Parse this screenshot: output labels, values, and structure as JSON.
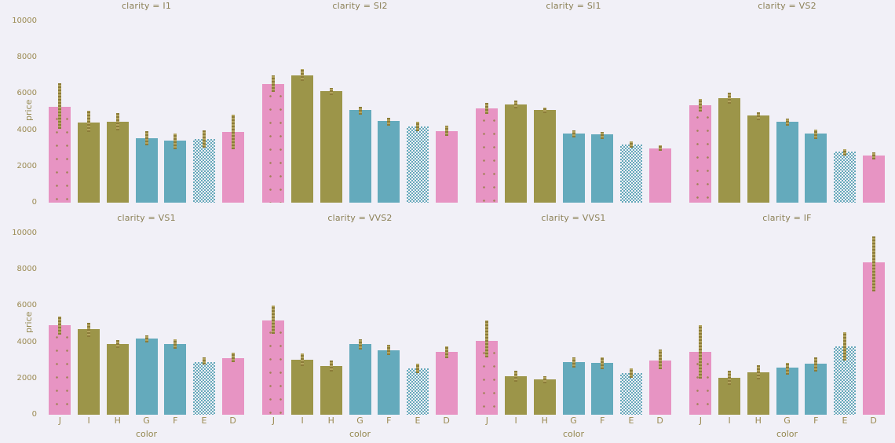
{
  "figure": {
    "background": "#f1f0f7",
    "ylabel": "price",
    "xlabel": "color",
    "yticks": [
      "10000",
      "8000",
      "6000",
      "4000",
      "2000",
      "0"
    ],
    "ytick_values": [
      10000,
      8000,
      6000,
      4000,
      2000,
      0
    ],
    "text_color": "#9b8a52",
    "title_color": "#8c8157",
    "bar_styles": [
      "pink-dotted",
      "olive",
      "olive",
      "teal",
      "teal",
      "blue-dotted",
      "pink"
    ],
    "colors": {
      "pink": "#e794c3",
      "olive": "#9c9549",
      "teal": "#64aabc",
      "error_bar": "#8c7c39",
      "dotted_bar_bg": "#f2f0f6"
    }
  },
  "chart_data": {
    "type": "bar",
    "facet_variable": "clarity",
    "x": [
      "J",
      "I",
      "H",
      "G",
      "F",
      "E",
      "D"
    ],
    "xlabel": "color",
    "ylabel": "price",
    "ylim": [
      0,
      10300
    ],
    "grid": false,
    "legend": false,
    "error_bars": true,
    "facets": [
      {
        "title": "clarity = I1",
        "values": [
          5300,
          4400,
          4450,
          3550,
          3400,
          3500,
          3900
        ],
        "err_lo": [
          4050,
          3900,
          4000,
          3150,
          2950,
          3050,
          2950
        ],
        "err_hi": [
          6550,
          5050,
          4950,
          3950,
          3800,
          4000,
          4850
        ]
      },
      {
        "title": "clarity = SI2",
        "values": [
          6550,
          7000,
          6150,
          5100,
          4500,
          4200,
          3950
        ],
        "err_lo": [
          6100,
          6700,
          5950,
          4850,
          4250,
          3950,
          3700
        ],
        "err_hi": [
          7000,
          7350,
          6350,
          5300,
          4700,
          4450,
          4250
        ]
      },
      {
        "title": "clarity = SI1",
        "values": [
          5200,
          5400,
          5100,
          3800,
          3750,
          3200,
          3000
        ],
        "err_lo": [
          4900,
          5200,
          4950,
          3600,
          3500,
          3050,
          2850
        ],
        "err_hi": [
          5500,
          5650,
          5250,
          4000,
          3900,
          3400,
          3150
        ]
      },
      {
        "title": "clarity = VS2",
        "values": [
          5350,
          5750,
          4800,
          4450,
          3800,
          2800,
          2600
        ],
        "err_lo": [
          5000,
          5450,
          4550,
          4250,
          3500,
          2600,
          2400
        ],
        "err_hi": [
          5700,
          6050,
          5000,
          4650,
          4000,
          2950,
          2800
        ]
      },
      {
        "title": "clarity = VS1",
        "values": [
          4950,
          4700,
          3900,
          4200,
          3900,
          2900,
          3100
        ],
        "err_lo": [
          4400,
          4300,
          3700,
          4000,
          3650,
          2750,
          2900
        ],
        "err_hi": [
          5400,
          5100,
          4150,
          4400,
          4150,
          3150,
          3400
        ]
      },
      {
        "title": "clarity = VVS2",
        "values": [
          5200,
          3050,
          2700,
          3900,
          3550,
          2550,
          3450
        ],
        "err_lo": [
          4450,
          2700,
          2400,
          3600,
          3300,
          2300,
          3100
        ],
        "err_hi": [
          6000,
          3400,
          3000,
          4150,
          3850,
          2800,
          3750
        ]
      },
      {
        "title": "clarity = VVS1",
        "values": [
          4050,
          2100,
          1950,
          2900,
          2850,
          2300,
          3000
        ],
        "err_lo": [
          3150,
          1800,
          1750,
          2600,
          2500,
          2050,
          2500
        ],
        "err_hi": [
          5200,
          2400,
          2150,
          3150,
          3150,
          2550,
          3600
        ]
      },
      {
        "title": "clarity = IF",
        "values": [
          3450,
          2050,
          2350,
          2600,
          2800,
          3750,
          8400
        ],
        "err_lo": [
          2000,
          1650,
          1950,
          2200,
          2400,
          3000,
          6800
        ],
        "err_hi": [
          4950,
          2450,
          2750,
          2850,
          3200,
          4550,
          9850
        ]
      }
    ]
  }
}
